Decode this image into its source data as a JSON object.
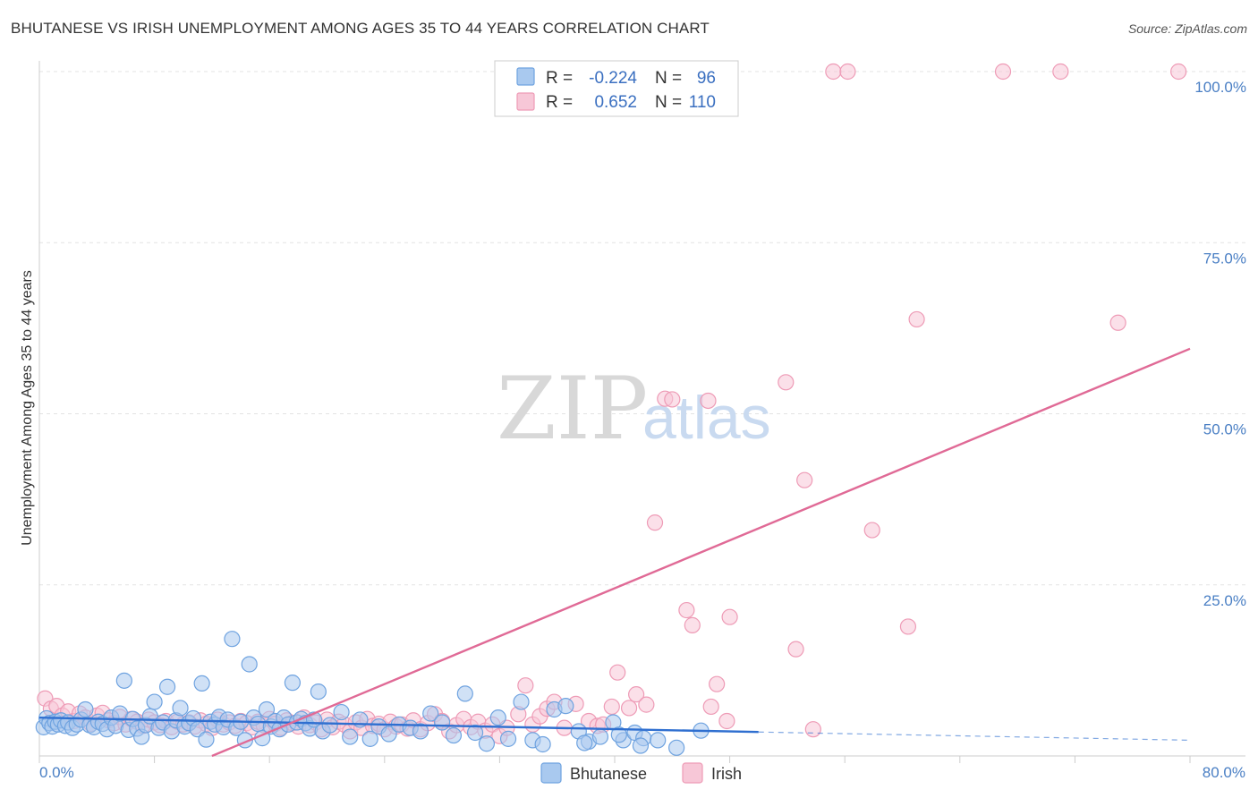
{
  "title": "BHUTANESE VS IRISH UNEMPLOYMENT AMONG AGES 35 TO 44 YEARS CORRELATION CHART",
  "source": "Source: ZipAtlas.com",
  "watermark": {
    "zip": "ZIP",
    "atlas": "atlas"
  },
  "chart_data": {
    "type": "scatter",
    "ylabel": "Unemployment Among Ages 35 to 44 years",
    "xlim": [
      0,
      80
    ],
    "ylim": [
      0,
      100
    ],
    "y_ticks": [
      {
        "value": 100,
        "label": "100.0%"
      },
      {
        "value": 75,
        "label": "75.0%"
      },
      {
        "value": 50,
        "label": "50.0%"
      },
      {
        "value": 25,
        "label": "25.0%"
      }
    ],
    "x_tick_labels": {
      "left": "0.0%",
      "right": "80.0%"
    },
    "grid": true,
    "legend_top": {
      "rows": [
        {
          "r_label": "R =",
          "r_value": "-0.224",
          "n_label": "N =",
          "n_value": "96"
        },
        {
          "r_label": "R =",
          "r_value": "0.652",
          "n_label": "N =",
          "n_value": "110"
        }
      ]
    },
    "series": [
      {
        "name": "Bhutanese",
        "color": "#6fa3e0",
        "fill": "#a9c9ef",
        "line_color": "#2f6fd0",
        "trend": {
          "x0": 0,
          "y0": 5.6,
          "x1": 50,
          "y1": 3.5,
          "dash_to": 80,
          "dash_y": 2.3
        },
        "points": [
          [
            0.3,
            4.2
          ],
          [
            0.5,
            5.5
          ],
          [
            0.7,
            4.8
          ],
          [
            0.9,
            4.3
          ],
          [
            1.1,
            5.0
          ],
          [
            1.3,
            4.6
          ],
          [
            1.5,
            5.2
          ],
          [
            1.8,
            4.4
          ],
          [
            2.0,
            4.9
          ],
          [
            2.3,
            4.1
          ],
          [
            2.6,
            4.6
          ],
          [
            2.9,
            5.3
          ],
          [
            3.2,
            6.8
          ],
          [
            3.5,
            4.5
          ],
          [
            3.8,
            4.2
          ],
          [
            4.1,
            5.0
          ],
          [
            4.4,
            4.7
          ],
          [
            4.7,
            3.9
          ],
          [
            5.0,
            5.6
          ],
          [
            5.3,
            4.4
          ],
          [
            5.6,
            6.2
          ],
          [
            5.9,
            11.0
          ],
          [
            6.2,
            3.8
          ],
          [
            6.5,
            5.4
          ],
          [
            6.8,
            4.0
          ],
          [
            7.1,
            2.8
          ],
          [
            7.4,
            4.5
          ],
          [
            7.7,
            5.8
          ],
          [
            8.0,
            7.9
          ],
          [
            8.3,
            4.1
          ],
          [
            8.6,
            4.9
          ],
          [
            8.9,
            10.1
          ],
          [
            9.2,
            3.6
          ],
          [
            9.5,
            5.2
          ],
          [
            9.8,
            7.0
          ],
          [
            10.1,
            4.3
          ],
          [
            10.4,
            4.8
          ],
          [
            10.7,
            5.5
          ],
          [
            11.0,
            3.9
          ],
          [
            11.3,
            10.6
          ],
          [
            11.6,
            2.4
          ],
          [
            11.9,
            5.0
          ],
          [
            12.2,
            4.6
          ],
          [
            12.5,
            5.7
          ],
          [
            12.8,
            4.2
          ],
          [
            13.1,
            5.3
          ],
          [
            13.4,
            17.1
          ],
          [
            13.7,
            4.1
          ],
          [
            14.0,
            5.0
          ],
          [
            14.3,
            2.3
          ],
          [
            14.6,
            13.4
          ],
          [
            14.9,
            5.6
          ],
          [
            15.2,
            4.7
          ],
          [
            15.5,
            2.6
          ],
          [
            15.8,
            6.8
          ],
          [
            16.1,
            4.3
          ],
          [
            16.4,
            5.1
          ],
          [
            16.7,
            3.9
          ],
          [
            17.0,
            5.6
          ],
          [
            17.3,
            4.6
          ],
          [
            17.6,
            10.7
          ],
          [
            17.9,
            4.9
          ],
          [
            18.2,
            5.4
          ],
          [
            18.5,
            4.8
          ],
          [
            18.8,
            4.0
          ],
          [
            19.1,
            5.3
          ],
          [
            19.4,
            9.4
          ],
          [
            19.7,
            3.6
          ],
          [
            20.2,
            4.5
          ],
          [
            21.0,
            6.4
          ],
          [
            21.6,
            2.8
          ],
          [
            22.3,
            5.3
          ],
          [
            23.0,
            2.5
          ],
          [
            23.6,
            4.3
          ],
          [
            24.3,
            3.2
          ],
          [
            25.0,
            4.6
          ],
          [
            25.8,
            4.1
          ],
          [
            26.5,
            3.6
          ],
          [
            27.2,
            6.2
          ],
          [
            28.0,
            4.9
          ],
          [
            28.8,
            3.0
          ],
          [
            29.6,
            9.1
          ],
          [
            30.3,
            3.4
          ],
          [
            31.1,
            1.8
          ],
          [
            31.9,
            5.6
          ],
          [
            32.6,
            2.5
          ],
          [
            33.5,
            7.9
          ],
          [
            34.3,
            2.3
          ],
          [
            35.0,
            1.7
          ],
          [
            35.8,
            6.8
          ],
          [
            36.6,
            7.3
          ],
          [
            37.5,
            3.6
          ],
          [
            38.2,
            2.1
          ],
          [
            39.0,
            2.8
          ],
          [
            39.9,
            4.9
          ],
          [
            40.6,
            2.3
          ],
          [
            41.4,
            3.4
          ],
          [
            42.0,
            2.6
          ],
          [
            43.0,
            2.3
          ],
          [
            44.3,
            1.2
          ],
          [
            46.0,
            3.7
          ],
          [
            37.9,
            1.9
          ],
          [
            40.3,
            3.1
          ],
          [
            41.8,
            1.5
          ]
        ]
      },
      {
        "name": "Irish",
        "color": "#ee9bb6",
        "fill": "#f7c7d7",
        "line_color": "#e06a96",
        "trend": {
          "x0": 12,
          "y0": 0,
          "x1": 80,
          "y1": 59.5
        },
        "points": [
          [
            0.4,
            8.4
          ],
          [
            0.8,
            6.9
          ],
          [
            1.2,
            7.3
          ],
          [
            1.6,
            5.9
          ],
          [
            2.0,
            6.5
          ],
          [
            2.4,
            5.1
          ],
          [
            2.8,
            6.2
          ],
          [
            3.2,
            5.6
          ],
          [
            3.6,
            4.7
          ],
          [
            4.0,
            5.9
          ],
          [
            4.4,
            6.3
          ],
          [
            4.8,
            5.2
          ],
          [
            5.2,
            4.8
          ],
          [
            5.6,
            5.7
          ],
          [
            6.0,
            4.6
          ],
          [
            6.4,
            5.4
          ],
          [
            6.8,
            5.0
          ],
          [
            7.2,
            4.4
          ],
          [
            7.6,
            5.3
          ],
          [
            8.0,
            4.9
          ],
          [
            8.4,
            4.5
          ],
          [
            8.8,
            5.1
          ],
          [
            9.2,
            4.2
          ],
          [
            9.6,
            5.0
          ],
          [
            10.0,
            4.6
          ],
          [
            10.4,
            4.9
          ],
          [
            10.8,
            4.3
          ],
          [
            11.2,
            5.2
          ],
          [
            11.6,
            4.7
          ],
          [
            12.0,
            4.1
          ],
          [
            12.4,
            5.3
          ],
          [
            12.8,
            4.6
          ],
          [
            13.2,
            4.9
          ],
          [
            13.6,
            4.4
          ],
          [
            14.0,
            5.1
          ],
          [
            14.4,
            4.8
          ],
          [
            14.8,
            4.2
          ],
          [
            15.2,
            5.0
          ],
          [
            15.6,
            4.5
          ],
          [
            16.0,
            5.4
          ],
          [
            16.4,
            4.7
          ],
          [
            16.8,
            4.1
          ],
          [
            17.2,
            5.2
          ],
          [
            17.6,
            4.8
          ],
          [
            18.0,
            4.3
          ],
          [
            18.4,
            5.6
          ],
          [
            18.8,
            4.5
          ],
          [
            19.2,
            4.9
          ],
          [
            19.6,
            3.9
          ],
          [
            20.0,
            5.3
          ],
          [
            20.4,
            4.2
          ],
          [
            20.8,
            5.0
          ],
          [
            21.2,
            4.6
          ],
          [
            21.6,
            3.6
          ],
          [
            22.0,
            4.9
          ],
          [
            22.4,
            4.1
          ],
          [
            22.8,
            5.4
          ],
          [
            23.2,
            4.4
          ],
          [
            23.6,
            4.7
          ],
          [
            24.0,
            3.9
          ],
          [
            24.4,
            5.0
          ],
          [
            24.8,
            4.3
          ],
          [
            25.2,
            4.6
          ],
          [
            25.6,
            4.0
          ],
          [
            26.0,
            5.2
          ],
          [
            26.5,
            3.9
          ],
          [
            27.0,
            4.8
          ],
          [
            27.5,
            6.1
          ],
          [
            28.0,
            5.1
          ],
          [
            28.5,
            3.6
          ],
          [
            29.0,
            4.5
          ],
          [
            29.5,
            5.4
          ],
          [
            30.0,
            4.2
          ],
          [
            30.5,
            5.0
          ],
          [
            31.0,
            3.7
          ],
          [
            31.5,
            4.6
          ],
          [
            32.0,
            2.9
          ],
          [
            32.5,
            4.1
          ],
          [
            33.3,
            6.1
          ],
          [
            33.8,
            10.3
          ],
          [
            34.3,
            4.6
          ],
          [
            34.8,
            5.8
          ],
          [
            35.3,
            6.9
          ],
          [
            35.8,
            7.9
          ],
          [
            36.5,
            4.1
          ],
          [
            37.3,
            7.6
          ],
          [
            38.2,
            5.1
          ],
          [
            38.8,
            4.4
          ],
          [
            39.2,
            4.6
          ],
          [
            39.8,
            7.2
          ],
          [
            40.2,
            12.2
          ],
          [
            41.0,
            7.0
          ],
          [
            41.5,
            9.0
          ],
          [
            42.2,
            7.5
          ],
          [
            42.8,
            34.1
          ],
          [
            43.5,
            52.2
          ],
          [
            44.0,
            52.1
          ],
          [
            45.0,
            21.3
          ],
          [
            45.4,
            19.1
          ],
          [
            46.5,
            51.9
          ],
          [
            46.7,
            7.2
          ],
          [
            47.1,
            10.5
          ],
          [
            47.8,
            5.1
          ],
          [
            48.0,
            20.3
          ],
          [
            51.9,
            54.6
          ],
          [
            52.6,
            15.6
          ],
          [
            53.2,
            40.3
          ],
          [
            53.8,
            3.9
          ],
          [
            55.2,
            100.0
          ],
          [
            56.2,
            100.0
          ],
          [
            57.9,
            33.0
          ],
          [
            60.4,
            18.9
          ],
          [
            61.0,
            63.8
          ],
          [
            67.0,
            100.0
          ],
          [
            71.0,
            100.0
          ],
          [
            75.0,
            63.3
          ],
          [
            79.2,
            100.0
          ]
        ]
      }
    ]
  }
}
